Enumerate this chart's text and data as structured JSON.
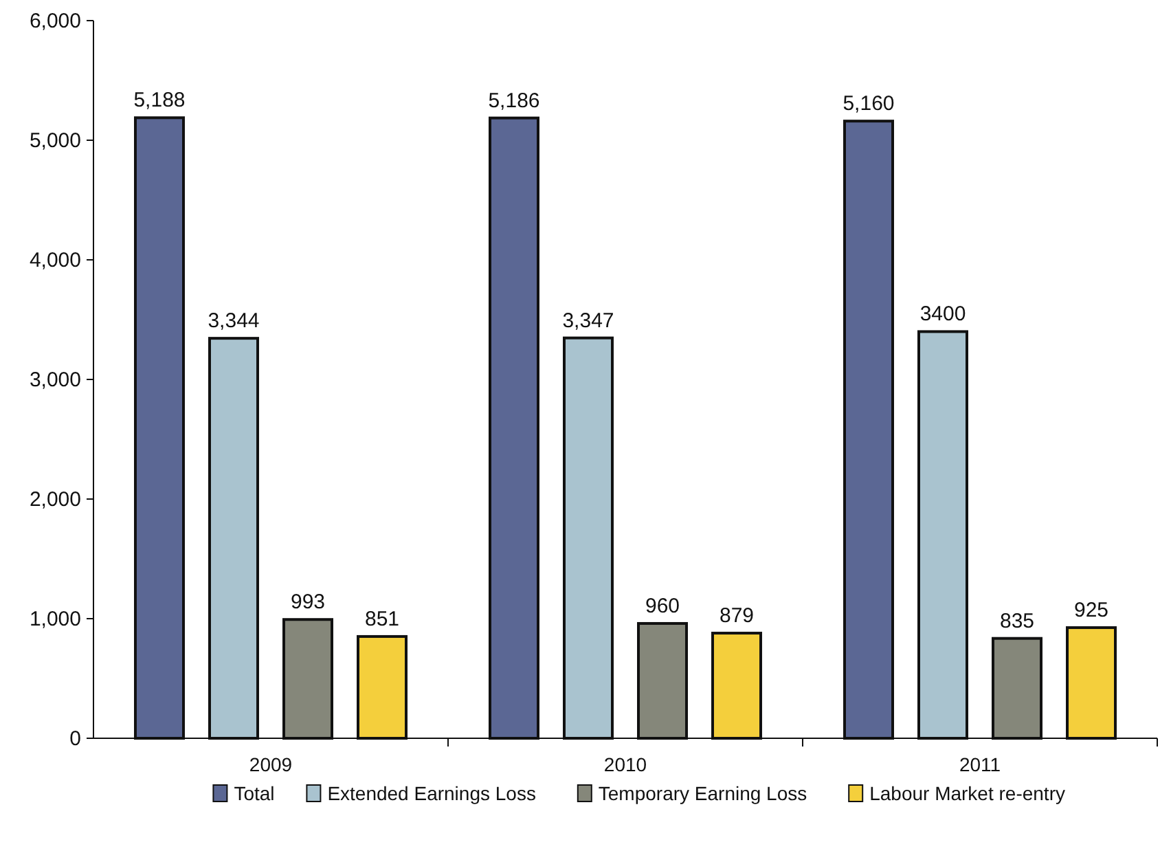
{
  "chart_data": {
    "type": "bar",
    "categories": [
      "2009",
      "2010",
      "2011"
    ],
    "series": [
      {
        "name": "Total",
        "color": "#5b6794",
        "values": [
          5188,
          5186,
          5160
        ],
        "value_labels": [
          "5,188",
          "5,186",
          "5,160"
        ]
      },
      {
        "name": "Extended Earnings Loss",
        "color": "#a9c3cf",
        "values": [
          3344,
          3347,
          3400
        ],
        "value_labels": [
          "3,344",
          "3,347",
          "3400"
        ]
      },
      {
        "name": "Temporary Earning Loss",
        "color": "#85877a",
        "values": [
          993,
          960,
          835
        ],
        "value_labels": [
          "993",
          "960",
          "835"
        ]
      },
      {
        "name": "Labour Market re-entry",
        "color": "#f4cf3c",
        "values": [
          851,
          879,
          925
        ],
        "value_labels": [
          "851",
          "879",
          "925"
        ]
      }
    ],
    "ylim": [
      0,
      6000
    ],
    "yticks": [
      {
        "value": 0,
        "label": "0"
      },
      {
        "value": 1000,
        "label": "1,000"
      },
      {
        "value": 2000,
        "label": "2,000"
      },
      {
        "value": 3000,
        "label": "3,000"
      },
      {
        "value": 4000,
        "label": "4,000"
      },
      {
        "value": 5000,
        "label": "5,000"
      },
      {
        "value": 6000,
        "label": "6,000"
      }
    ],
    "grid": false,
    "legend": "bottom"
  }
}
